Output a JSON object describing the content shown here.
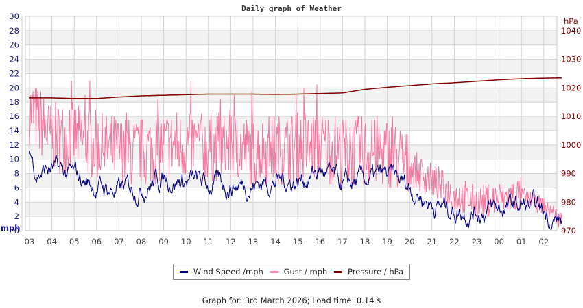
{
  "title": "Daily graph of Weather",
  "footer": "Graph for: 3rd March 2026; Load time: 0.14 s",
  "legend": [
    {
      "label": "Wind Speed /mph",
      "color": "#000080"
    },
    {
      "label": "Gust / mph",
      "color": "#ff88aa"
    },
    {
      "label": "Pressure / hPa",
      "color": "#800000"
    }
  ],
  "colors": {
    "wind": "#000080",
    "gust": "#f57aa0",
    "pressure": "#800000",
    "left_axis": "#1a1a8a",
    "right_axis": "#8b0000",
    "grid": "#d3d3d3",
    "band": "#f2f2f2"
  },
  "chart_data": {
    "type": "line",
    "title": "Daily graph of Weather",
    "xlabel": "",
    "ylabel_left": "mph",
    "ylabel_right": "hPa",
    "x_ticks": [
      "03",
      "04",
      "05",
      "06",
      "07",
      "08",
      "09",
      "10",
      "11",
      "12",
      "13",
      "14",
      "15",
      "16",
      "17",
      "18",
      "19",
      "20",
      "21",
      "22",
      "23",
      "00",
      "01",
      "02"
    ],
    "y_left_ticks": [
      0,
      2,
      4,
      6,
      8,
      10,
      12,
      14,
      16,
      18,
      20,
      22,
      24,
      26,
      28,
      30
    ],
    "y_right_ticks": [
      970,
      980,
      990,
      1000,
      1010,
      1020,
      1030,
      1040
    ],
    "ylim_left": [
      0,
      30
    ],
    "ylim_right": [
      970,
      1040
    ],
    "grid": true,
    "legend_position": "bottom",
    "series": [
      {
        "name": "Wind Speed /mph",
        "axis": "left",
        "hours": [
          0,
          0.3,
          1,
          2,
          3,
          4,
          5,
          6,
          7,
          8,
          9,
          10,
          11,
          12,
          13,
          14,
          15,
          16,
          17,
          18,
          19,
          20,
          21,
          22,
          23,
          23.8
        ],
        "values": [
          11,
          8.5,
          8.5,
          7.5,
          6.2,
          5.5,
          6.3,
          7.5,
          7,
          6.3,
          6.5,
          6.5,
          7,
          7,
          8.5,
          6,
          7,
          7.5,
          6.2,
          3.8,
          3,
          2.8,
          3,
          3.5,
          2.5,
          1.2
        ]
      },
      {
        "name": "Gust / mph",
        "axis": "left",
        "hours": [
          0,
          1,
          2,
          3,
          4,
          5,
          6,
          7,
          8,
          9,
          10,
          11,
          12,
          13,
          14,
          15,
          16,
          17,
          18,
          19,
          20,
          21,
          22,
          23,
          23.8
        ],
        "values": [
          17,
          13,
          13,
          12,
          11,
          11,
          12,
          12,
          11.5,
          12,
          11,
          11.5,
          11.5,
          12,
          11,
          11,
          11,
          9,
          7,
          5,
          4,
          4.5,
          5,
          3.5,
          1.5
        ]
      },
      {
        "name": "Pressure / hPa",
        "axis": "right",
        "hours": [
          0,
          1,
          2,
          3,
          4,
          5,
          6,
          7,
          8,
          9,
          10,
          11,
          12,
          13,
          14,
          15,
          16,
          17,
          18,
          19,
          20,
          21,
          22,
          23,
          23.8
        ],
        "values": [
          1016.5,
          1016.5,
          1016.3,
          1016.3,
          1016.8,
          1017.2,
          1017.4,
          1017.6,
          1017.8,
          1017.8,
          1017.8,
          1017.7,
          1017.8,
          1018,
          1018.2,
          1019.5,
          1020.2,
          1020.8,
          1021.4,
          1021.8,
          1022.3,
          1022.8,
          1023.2,
          1023.4,
          1023.5
        ]
      }
    ]
  },
  "axes": {
    "left_unit": "mph",
    "right_unit": "hPa"
  }
}
